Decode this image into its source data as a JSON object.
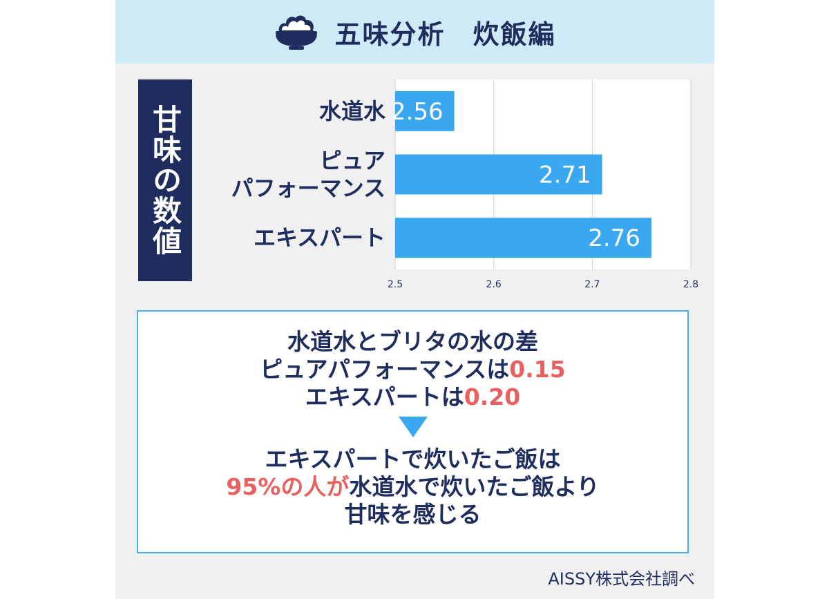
{
  "header": {
    "icon": "rice-bowl-icon",
    "title": "五味分析　炊飯編"
  },
  "side_label": "甘味の数値",
  "chart_data": {
    "type": "bar",
    "orientation": "horizontal",
    "categories": [
      [
        "水道水"
      ],
      [
        "ピュア",
        "パフォーマンス"
      ],
      [
        "エキスパート"
      ]
    ],
    "values": [
      2.56,
      2.71,
      2.76
    ],
    "value_labels": [
      "2.56",
      "2.71",
      "2.76"
    ],
    "xlim": [
      2.5,
      2.8
    ],
    "ticks": [
      "2.5",
      "2.6",
      "2.7",
      "2.8"
    ],
    "grid": true,
    "bar_color": "#3aa8f0"
  },
  "summary": {
    "line1": "水道水とブリタの水の差",
    "line2_text": "ピュアパフォーマンスは",
    "line2_value": "0.15",
    "line3_text": "エキスパートは",
    "line3_value": "0.20",
    "result_line1": "エキスパートで炊いたご飯は",
    "result_line2_highlight": "95%の人が",
    "result_line2_text": "水道水で炊いたご飯より",
    "result_line3": "甘味を感じる"
  },
  "credit": "AISSY株式会社調べ",
  "colors": {
    "navy": "#1f2d5e",
    "accent": "#3aa8f0",
    "highlight": "#e8605f",
    "header_bg": "#cfeaf7"
  }
}
